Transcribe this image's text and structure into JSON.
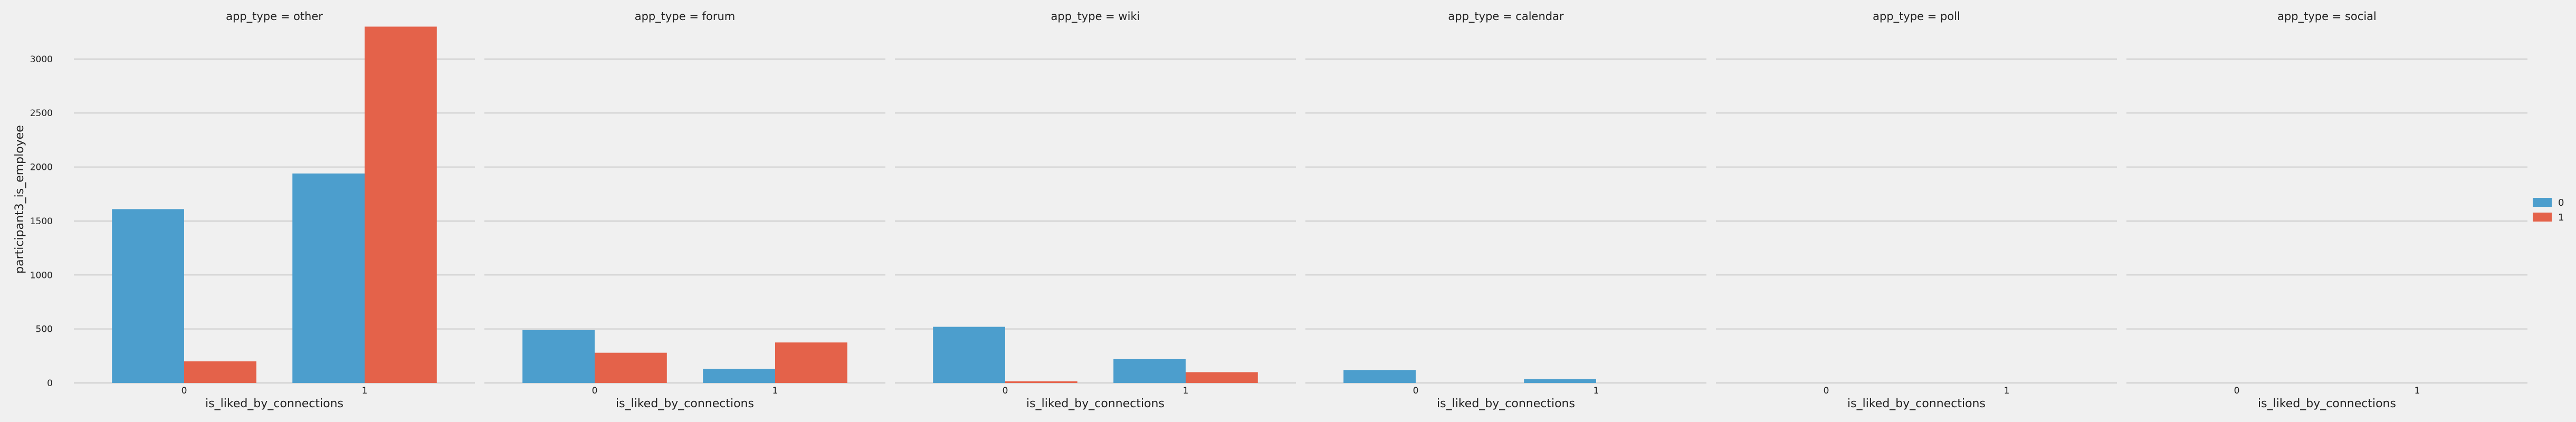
{
  "chart_data": {
    "type": "bar",
    "facet_titles": [
      "app_type = other",
      "app_type = forum",
      "app_type = wiki",
      "app_type = calendar",
      "app_type = poll",
      "app_type = social"
    ],
    "categories": [
      "0",
      "1"
    ],
    "xlabel": "is_liked_by_connections",
    "ylabel": "participant3_is_employee",
    "ylim": [
      0,
      3400
    ],
    "yticks": [
      0,
      500,
      1000,
      1500,
      2000,
      2500,
      3000
    ],
    "grid": true,
    "legend": {
      "position": "right",
      "entries": [
        "0",
        "1"
      ]
    },
    "colors": [
      "#4c9ecd",
      "#e4624a"
    ],
    "series": [
      {
        "name": "0",
        "values": [
          [
            1610,
            1940
          ],
          [
            490,
            130
          ],
          [
            520,
            220
          ],
          [
            120,
            35
          ],
          [
            0,
            0
          ],
          [
            0,
            0
          ]
        ]
      },
      {
        "name": "1",
        "values": [
          [
            200,
            3300
          ],
          [
            280,
            375
          ],
          [
            15,
            100
          ],
          [
            0,
            0
          ],
          [
            0,
            0
          ],
          [
            0,
            0
          ]
        ]
      }
    ]
  }
}
